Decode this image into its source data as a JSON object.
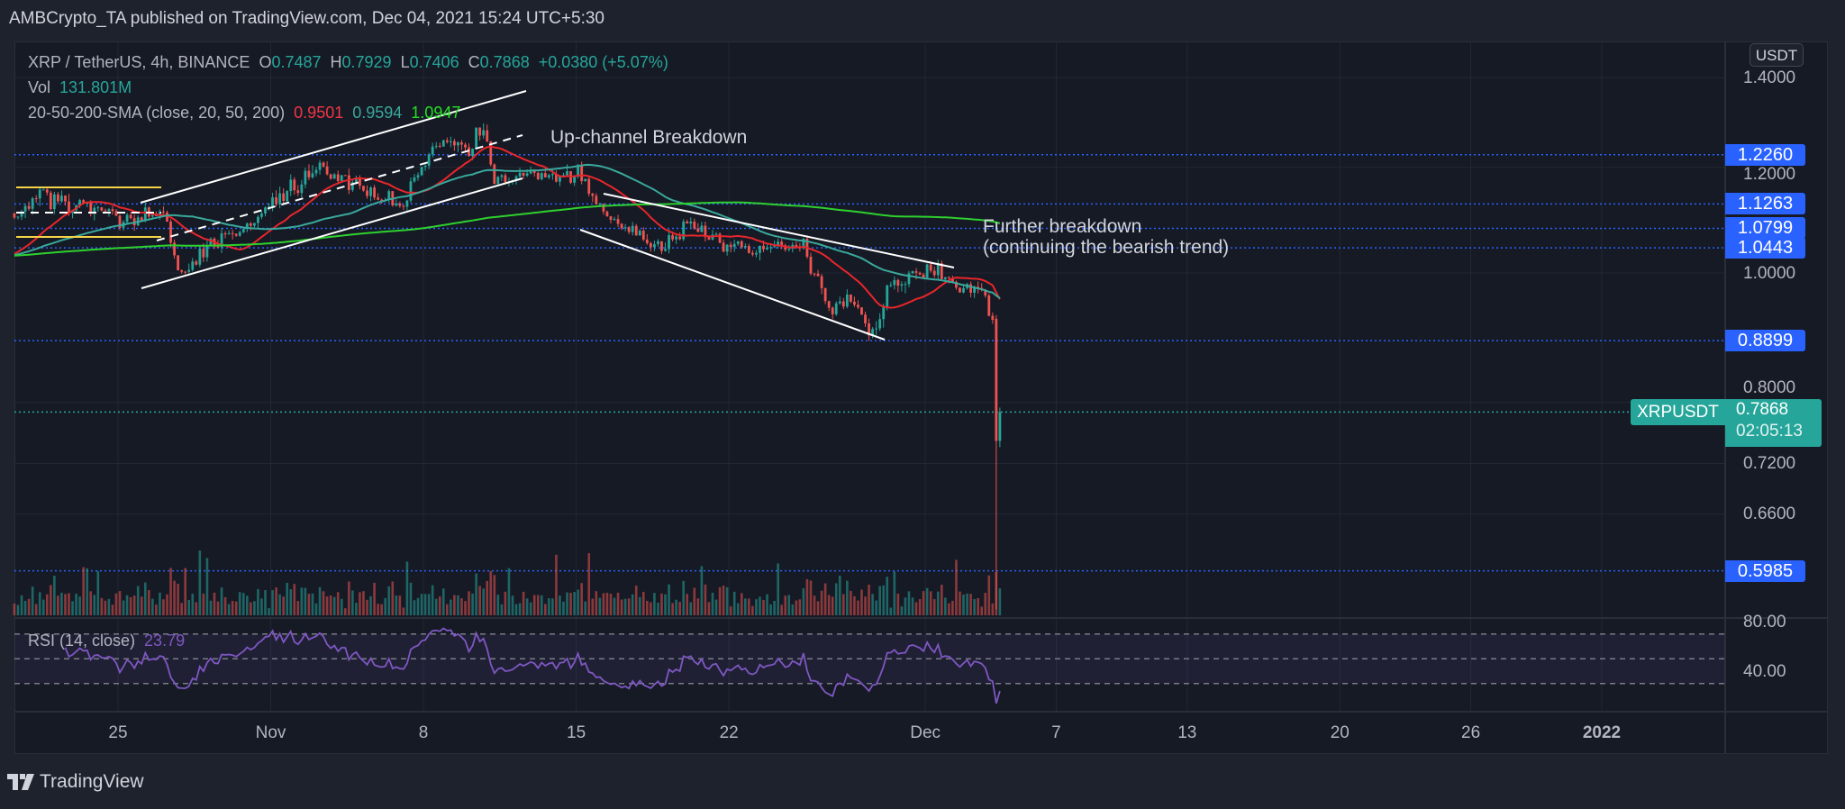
{
  "publish_line": "AMBCrypto_TA published on TradingView.com, Dec 04, 2021 15:24 UTC+5:30",
  "legend": {
    "symbol": "XRP / TetherUS, 4h, BINANCE",
    "o_label": "O",
    "o": "0.7487",
    "h_label": "H",
    "h": "0.7929",
    "l_label": "L",
    "l": "0.7406",
    "c_label": "C",
    "c": "0.7868",
    "change": "+0.0380 (+5.07%)",
    "vol_label": "Vol",
    "vol": "131.801M",
    "sma_label": "20-50-200-SMA (close, 20, 50, 200)",
    "sma20": "0.9501",
    "sma50": "0.9594",
    "sma200": "1.0947"
  },
  "annotations": {
    "up_channel": "Up-channel Breakdown",
    "further_1": "Further breakdown",
    "further_2": "(continuing the bearish trend)"
  },
  "price_axis": {
    "currency_button": "USDT",
    "scale": "log",
    "ticks": [
      "1.4000",
      "1.2000",
      "1.0000",
      "0.8000",
      "0.7200",
      "0.6600"
    ],
    "levels": [
      "1.2260",
      "1.1263",
      "1.0799",
      "1.0443",
      "0.8899",
      "0.5985"
    ],
    "symbol_label": "XRPUSDT",
    "last_price": "0.7868",
    "countdown": "02:05:13"
  },
  "time_axis": [
    {
      "label": "25",
      "date": "2021-10-25"
    },
    {
      "label": "Nov",
      "date": "2021-11-01"
    },
    {
      "label": "8",
      "date": "2021-11-08"
    },
    {
      "label": "15",
      "date": "2021-11-15"
    },
    {
      "label": "22",
      "date": "2021-11-22"
    },
    {
      "label": "Dec",
      "date": "2021-12-01"
    },
    {
      "label": "7",
      "date": "2021-12-07"
    },
    {
      "label": "13",
      "date": "2021-12-13"
    },
    {
      "label": "20",
      "date": "2021-12-20"
    },
    {
      "label": "26",
      "date": "2021-12-26"
    },
    {
      "label": "2022",
      "date": "2022-01-01",
      "bold": true
    }
  ],
  "rsi": {
    "label": "RSI (14, close)",
    "value": "23.79",
    "ticks": [
      "80.00",
      "40.00"
    ],
    "bands": [
      70,
      50,
      30
    ]
  },
  "colors": {
    "up": "#26a69a",
    "down": "#ef5350",
    "sma20": "#e8262b",
    "sma50": "#3aa89c",
    "sma200": "#2ed12e",
    "rsi": "#7e57c2",
    "level": "#2962ff"
  },
  "chart_data": {
    "type": "candlestick",
    "interval": "4h",
    "close_path": [
      [
        "2021-10-20 10:00",
        1.108
      ],
      [
        "2021-10-21 05:00",
        1.14
      ],
      [
        "2021-10-25 00:00",
        1.097
      ],
      [
        "2021-10-27 03:00",
        1.108
      ],
      [
        "2021-10-27 16:00",
        0.99
      ],
      [
        "2021-10-28 05:00",
        1.02
      ],
      [
        "2021-10-30 09:00",
        1.075
      ],
      [
        "2021-11-03 04:00",
        1.2
      ],
      [
        "2021-11-05 20:00",
        1.14
      ],
      [
        "2021-11-06 22:00",
        1.12
      ],
      [
        "2021-11-08 13:00",
        1.26
      ],
      [
        "2021-11-09 21:00",
        1.24
      ],
      [
        "2021-11-10 17:00",
        1.28
      ],
      [
        "2021-11-11 03:00",
        1.18
      ],
      [
        "2021-11-12 07:00",
        1.18
      ],
      [
        "2021-11-15 00:00",
        1.19
      ],
      [
        "2021-11-16 09:00",
        1.1
      ],
      [
        "2021-11-18 19:00",
        1.04
      ],
      [
        "2021-11-19 21:00",
        1.085
      ],
      [
        "2021-11-23 02:00",
        1.04
      ],
      [
        "2021-11-25 06:00",
        1.05
      ],
      [
        "2021-11-26 14:00",
        0.93
      ],
      [
        "2021-11-27 10:00",
        0.96
      ],
      [
        "2021-11-28 12:00",
        0.897
      ],
      [
        "2021-11-29 07:00",
        0.98
      ],
      [
        "2021-12-01 05:00",
        1.012
      ],
      [
        "2021-12-02 07:00",
        0.98
      ],
      [
        "2021-12-03 14:00",
        0.972
      ],
      [
        "2021-12-04 00:00",
        0.924
      ]
    ],
    "last_candles": [
      {
        "time": "2021-12-04 04:00",
        "o": 0.924,
        "h": 0.93,
        "l": 0.56,
        "c": 0.7487
      },
      {
        "time": "2021-12-04 08:00",
        "o": 0.7487,
        "h": 0.7929,
        "l": 0.7406,
        "c": 0.7868
      }
    ],
    "sma_periods": [
      20,
      50,
      200
    ],
    "ylim": [
      0.55,
      1.45
    ]
  }
}
